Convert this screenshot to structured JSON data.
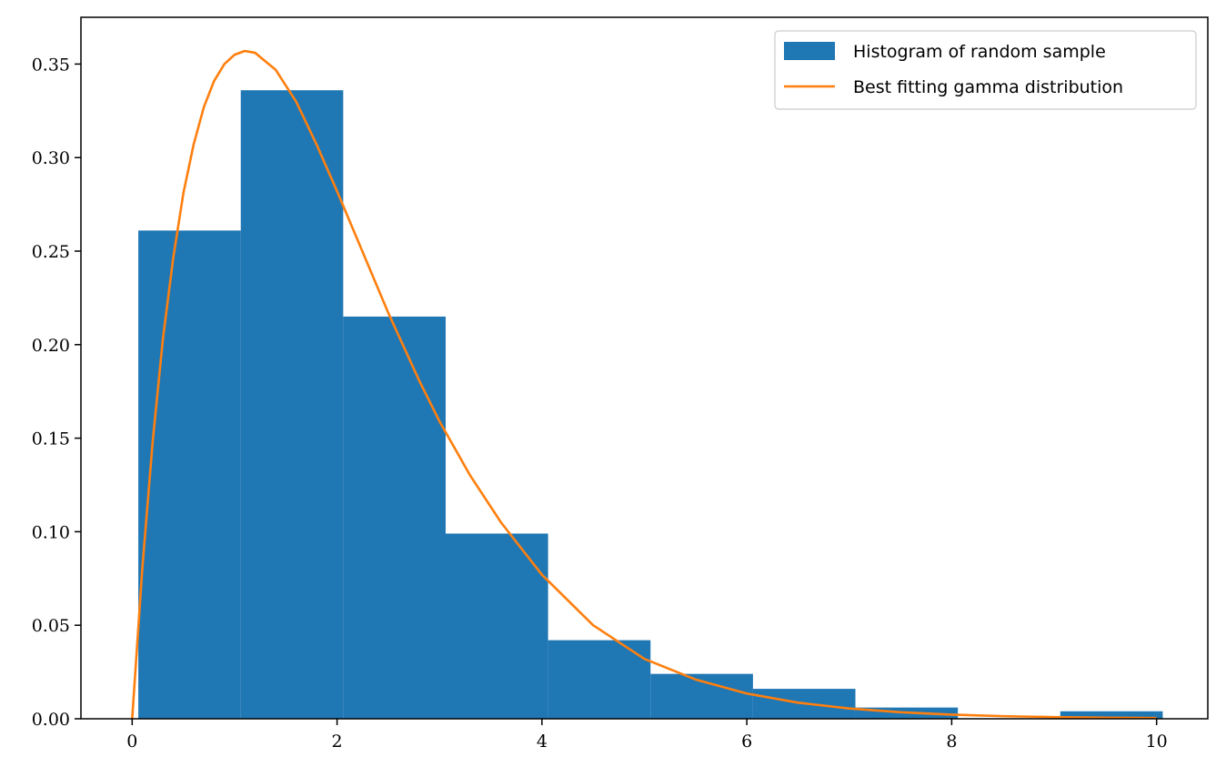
{
  "chart_data": {
    "type": "bar",
    "xlim": [
      -0.5,
      10.5
    ],
    "ylim": [
      0,
      0.375
    ],
    "x_ticks": [
      0,
      2,
      4,
      6,
      8,
      10
    ],
    "x_tick_labels": [
      "0",
      "2",
      "4",
      "6",
      "8",
      "10"
    ],
    "y_ticks": [
      0,
      0.05,
      0.1,
      0.15,
      0.2,
      0.25,
      0.3,
      0.35
    ],
    "y_tick_labels": [
      "0.00",
      "0.05",
      "0.10",
      "0.15",
      "0.20",
      "0.25",
      "0.30",
      "0.35"
    ],
    "grid": false,
    "legend_position": "top-right",
    "series": [
      {
        "name": "Histogram of random sample",
        "kind": "histogram",
        "color": "#1f77b4",
        "bins": [
          {
            "x0": 0.06,
            "x1": 1.06,
            "value": 0.261
          },
          {
            "x0": 1.06,
            "x1": 2.06,
            "value": 0.336
          },
          {
            "x0": 2.06,
            "x1": 3.06,
            "value": 0.215
          },
          {
            "x0": 3.06,
            "x1": 4.06,
            "value": 0.099
          },
          {
            "x0": 4.06,
            "x1": 5.06,
            "value": 0.042
          },
          {
            "x0": 5.06,
            "x1": 6.06,
            "value": 0.024
          },
          {
            "x0": 6.06,
            "x1": 7.06,
            "value": 0.016
          },
          {
            "x0": 7.06,
            "x1": 8.06,
            "value": 0.006
          },
          {
            "x0": 8.06,
            "x1": 9.06,
            "value": 0.0
          },
          {
            "x0": 9.06,
            "x1": 10.06,
            "value": 0.004
          }
        ]
      },
      {
        "name": "Best fitting gamma distribution",
        "kind": "line",
        "color": "#ff7f0e",
        "x": [
          0,
          0.1,
          0.2,
          0.3,
          0.4,
          0.5,
          0.6,
          0.7,
          0.8,
          0.9,
          1.0,
          1.1,
          1.2,
          1.4,
          1.6,
          1.8,
          2.0,
          2.2,
          2.5,
          2.8,
          3.0,
          3.3,
          3.6,
          4.0,
          4.5,
          5.0,
          5.5,
          6.0,
          6.5,
          7.0,
          7.5,
          8.0,
          8.5,
          9.0,
          9.5,
          10.0
        ],
        "y": [
          0.0,
          0.081,
          0.148,
          0.203,
          0.246,
          0.281,
          0.307,
          0.327,
          0.341,
          0.35,
          0.355,
          0.357,
          0.356,
          0.347,
          0.33,
          0.307,
          0.282,
          0.256,
          0.217,
          0.181,
          0.159,
          0.13,
          0.105,
          0.077,
          0.05,
          0.032,
          0.021,
          0.0135,
          0.0086,
          0.0055,
          0.0035,
          0.0022,
          0.0014,
          0.0009,
          0.0006,
          0.0004
        ]
      }
    ]
  }
}
